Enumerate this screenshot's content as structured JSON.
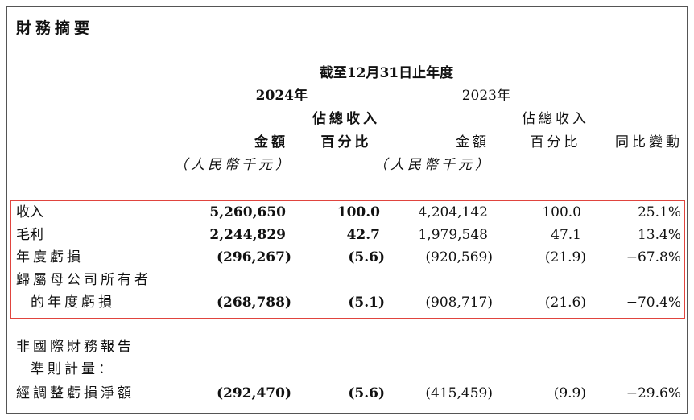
{
  "title": "財務摘要",
  "header": {
    "period": "截至12月31日止年度",
    "year_2024": "2024年",
    "year_2023": "2023年",
    "col_amount": "金額",
    "col_pct_line1": "佔總收入",
    "col_pct_line2": "百分比",
    "col_change": "同比變動",
    "unit": "（人民幣千元）"
  },
  "rows": [
    {
      "label": "收入",
      "v2024": "5,260,650",
      "p2024": "100.0",
      "v2023": "4,204,142",
      "p2023": "100.0",
      "change": "25.1%"
    },
    {
      "label": "毛利",
      "v2024": "2,244,829",
      "p2024": "42.7",
      "v2023": "1,979,548",
      "p2023": "47.1",
      "change": "13.4%"
    },
    {
      "label": "年度虧損",
      "v2024": "(296,267)",
      "p2024": "(5.6)",
      "v2023": "(920,569)",
      "p2023": "(21.9)",
      "change": "−67.8%"
    },
    {
      "label": "歸屬母公司所有者",
      "label2": "的年度虧損",
      "v2024": "(268,788)",
      "p2024": "(5.1)",
      "v2023": "(908,717)",
      "p2023": "(21.6)",
      "change": "−70.4%"
    }
  ],
  "nonifrs": {
    "label1": "非國際財務報告",
    "label2": "準則計量：",
    "label3": "經調整虧損淨額",
    "v2024": "(292,470)",
    "p2024": "(5.6)",
    "v2023": "(415,459)",
    "p2023": "(9.9)",
    "change": "−29.6%"
  }
}
